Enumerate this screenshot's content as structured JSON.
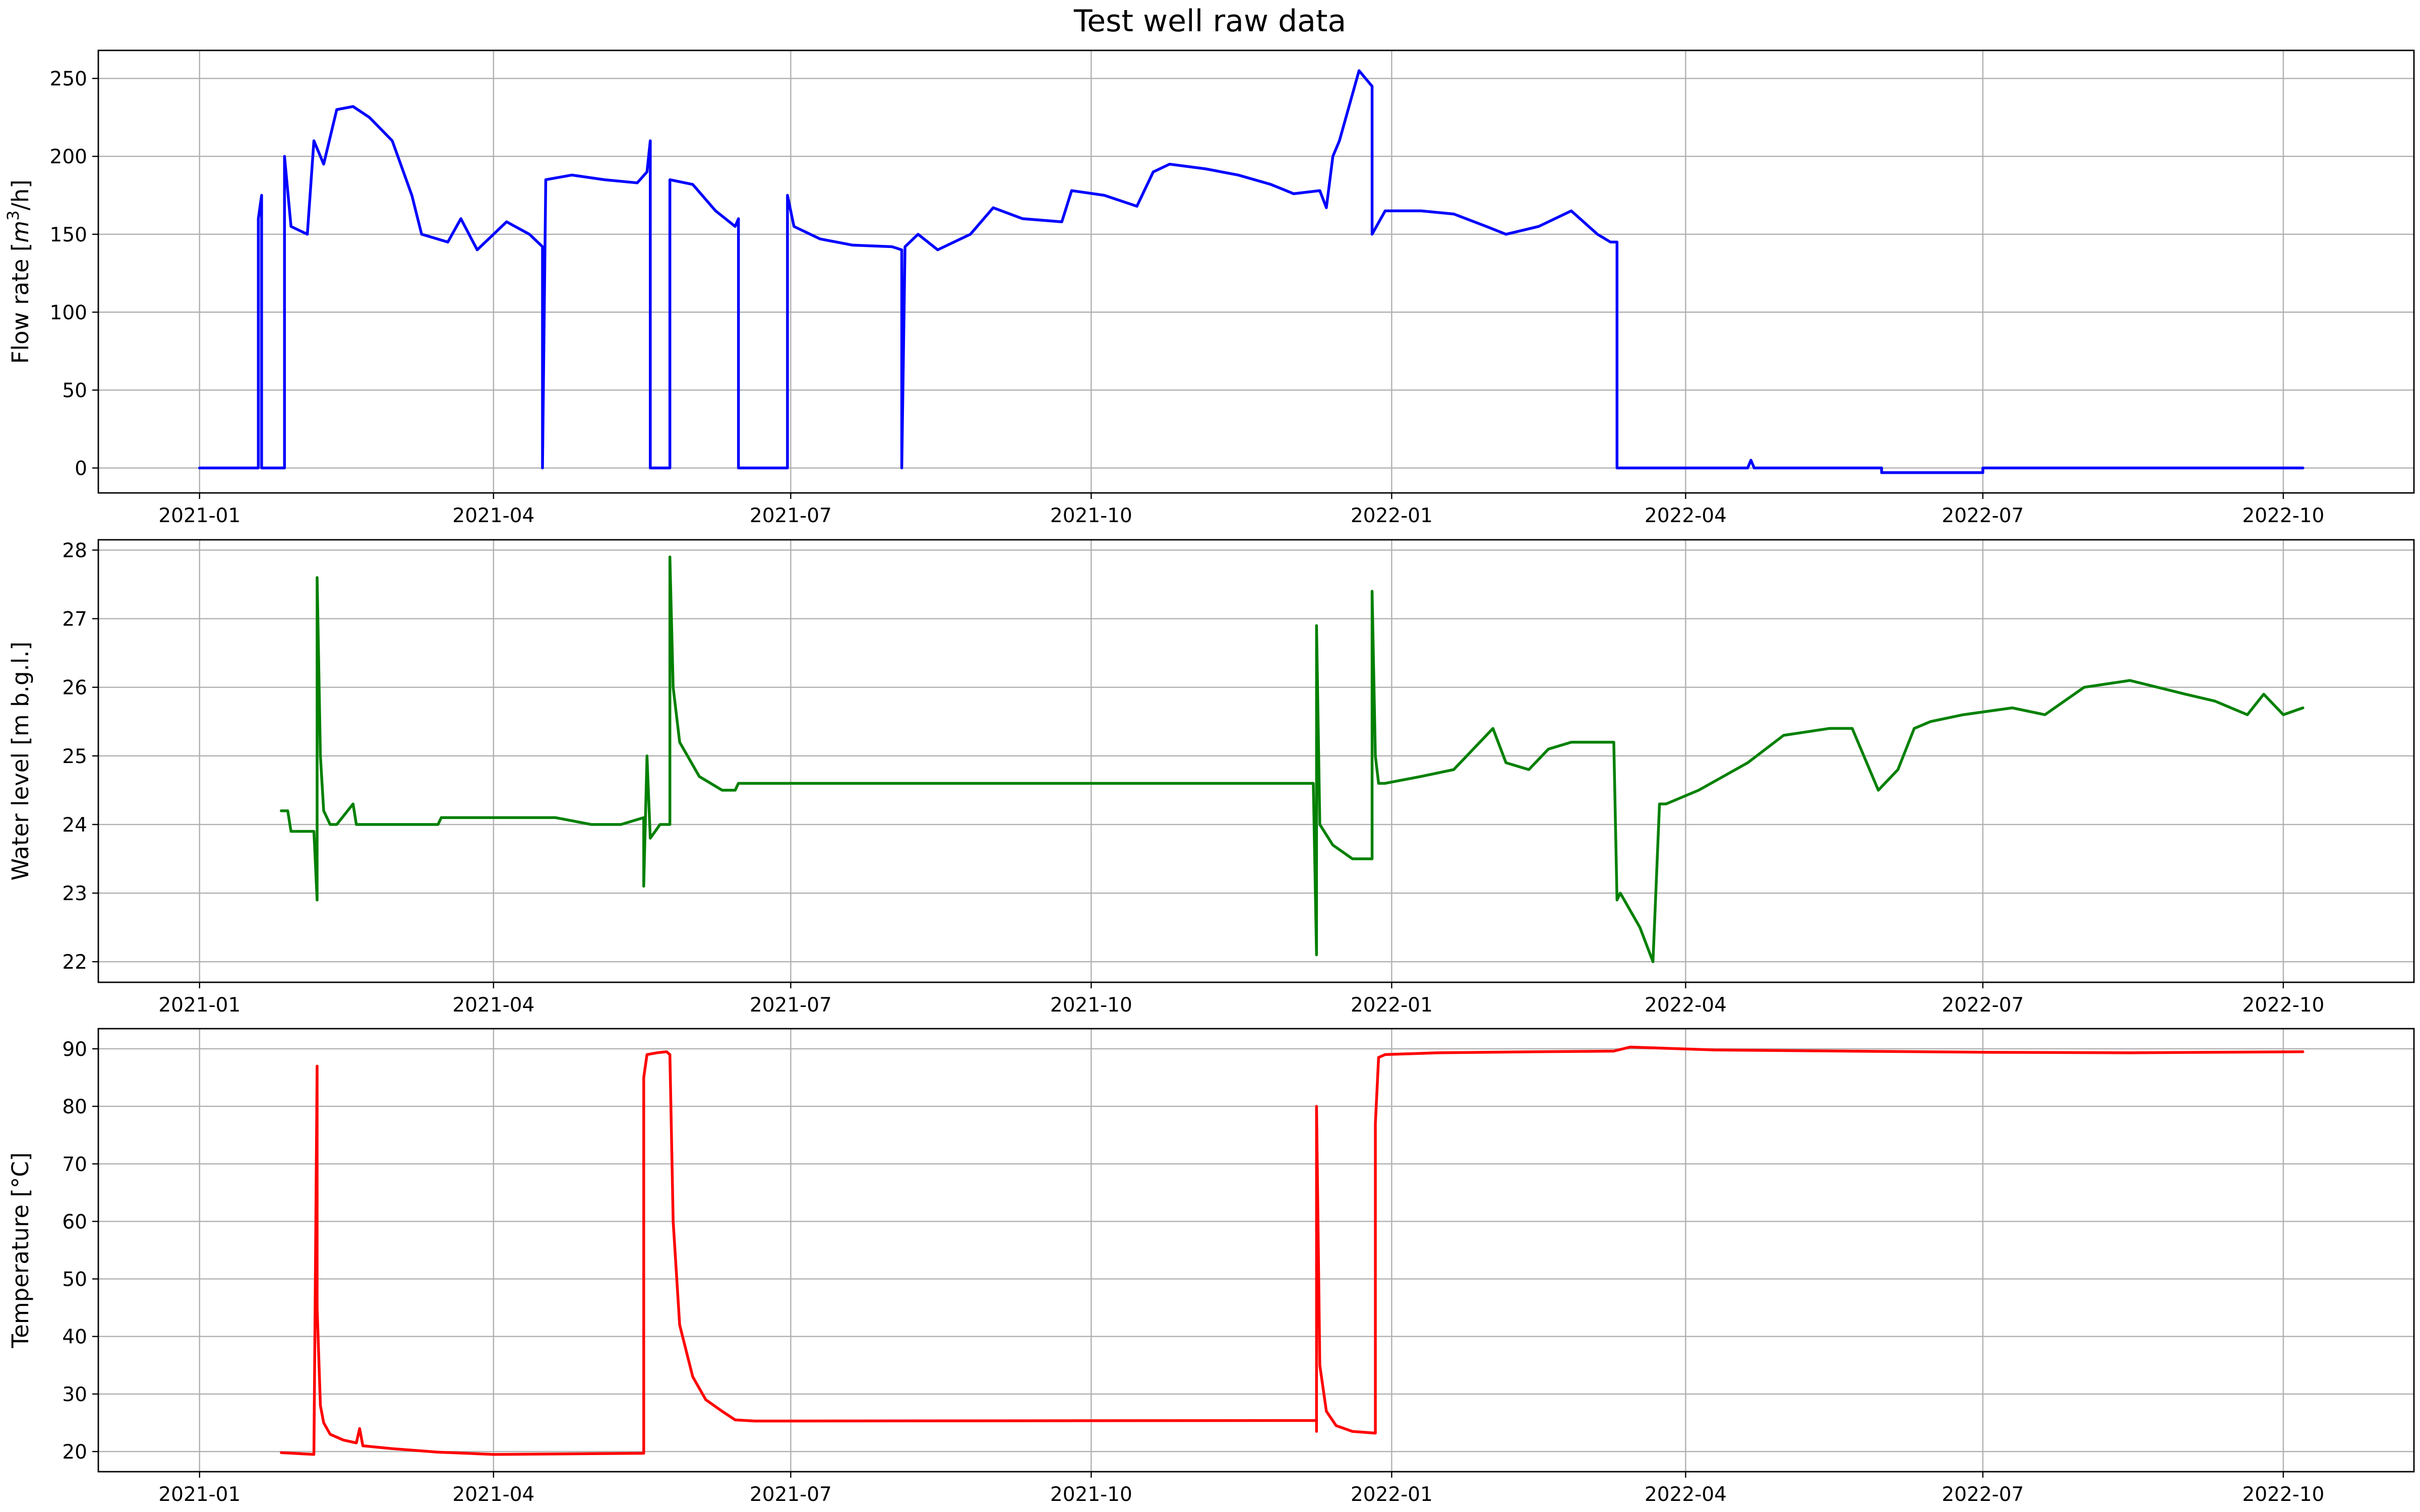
{
  "chart_data": {
    "suptitle": "Test well raw data",
    "x_type": "date",
    "xlim": [
      "2020-12-01",
      "2022-11-10"
    ],
    "x_ticks": [
      "2021-01-01",
      "2021-04-01",
      "2021-07-01",
      "2021-10-01",
      "2022-01-01",
      "2022-04-01",
      "2022-07-01",
      "2022-10-01"
    ],
    "x_tick_labels": [
      "2021-01",
      "2021-04",
      "2021-07",
      "2021-10",
      "2022-01",
      "2022-04",
      "2022-07",
      "2022-10"
    ],
    "grid": true,
    "panels": [
      {
        "type": "line",
        "ylabel_main": "Flow rate [",
        "ylabel_math": "m",
        "ylabel_sup": "3",
        "ylabel_tail": "/h]",
        "ylim": [
          -16,
          268
        ],
        "yticks": [
          0,
          50,
          100,
          150,
          200,
          250
        ],
        "color": "#0000ff",
        "x": [
          "2021-01-01",
          "2021-01-19",
          "2021-01-19",
          "2021-01-20",
          "2021-01-20",
          "2021-01-21",
          "2021-01-21",
          "2021-01-27",
          "2021-01-27",
          "2021-01-29",
          "2021-02-03",
          "2021-02-05",
          "2021-02-08",
          "2021-02-12",
          "2021-02-17",
          "2021-02-22",
          "2021-03-01",
          "2021-03-07",
          "2021-03-10",
          "2021-03-18",
          "2021-03-22",
          "2021-03-27",
          "2021-04-05",
          "2021-04-12",
          "2021-04-16",
          "2021-04-16",
          "2021-04-17",
          "2021-04-25",
          "2021-05-05",
          "2021-05-15",
          "2021-05-18",
          "2021-05-19",
          "2021-05-19",
          "2021-05-25",
          "2021-05-25",
          "2021-06-01",
          "2021-06-08",
          "2021-06-14",
          "2021-06-15",
          "2021-06-15",
          "2021-06-30",
          "2021-06-30",
          "2021-07-02",
          "2021-07-10",
          "2021-07-20",
          "2021-08-01",
          "2021-08-04",
          "2021-08-04",
          "2021-08-05",
          "2021-08-09",
          "2021-08-15",
          "2021-08-25",
          "2021-09-01",
          "2021-09-10",
          "2021-09-22",
          "2021-09-25",
          "2021-10-05",
          "2021-10-15",
          "2021-10-20",
          "2021-10-25",
          "2021-11-05",
          "2021-11-15",
          "2021-11-25",
          "2021-12-02",
          "2021-12-10",
          "2021-12-12",
          "2021-12-14",
          "2021-12-16",
          "2021-12-22",
          "2021-12-26",
          "2021-12-26",
          "2021-12-30",
          "2022-01-10",
          "2022-01-20",
          "2022-01-30",
          "2022-02-05",
          "2022-02-15",
          "2022-02-25",
          "2022-03-05",
          "2022-03-09",
          "2022-03-11",
          "2022-03-11",
          "2022-03-20",
          "2022-04-20",
          "2022-04-21",
          "2022-04-22",
          "2022-05-31",
          "2022-05-31",
          "2022-07-01",
          "2022-07-01",
          "2022-10-07"
        ],
        "y": [
          0,
          0,
          160,
          175,
          0,
          0,
          0,
          0,
          200,
          155,
          150,
          210,
          195,
          230,
          232,
          225,
          210,
          175,
          150,
          145,
          160,
          140,
          158,
          150,
          142,
          0,
          185,
          188,
          185,
          183,
          190,
          210,
          0,
          0,
          185,
          182,
          165,
          155,
          160,
          0,
          0,
          175,
          155,
          147,
          143,
          142,
          140,
          0,
          142,
          150,
          140,
          150,
          167,
          160,
          158,
          178,
          175,
          168,
          190,
          195,
          192,
          188,
          182,
          176,
          178,
          167,
          200,
          210,
          255,
          245,
          150,
          165,
          165,
          163,
          155,
          150,
          155,
          165,
          150,
          145,
          145,
          0,
          0,
          0,
          5,
          0,
          0,
          -3,
          -3,
          0,
          0
        ],
        "name": ""
      },
      {
        "type": "line",
        "ylabel": "Water level [m b.g.l.]",
        "ylim": [
          21.7,
          28.15
        ],
        "yticks": [
          22,
          23,
          24,
          25,
          26,
          27,
          28
        ],
        "color": "#008000",
        "x": [
          "2021-01-26",
          "2021-01-28",
          "2021-01-29",
          "2021-02-05",
          "2021-02-06",
          "2021-02-06",
          "2021-02-07",
          "2021-02-08",
          "2021-02-10",
          "2021-02-12",
          "2021-02-17",
          "2021-02-18",
          "2021-03-15",
          "2021-03-16",
          "2021-03-25",
          "2021-03-26",
          "2021-04-20",
          "2021-05-01",
          "2021-05-10",
          "2021-05-17",
          "2021-05-17",
          "2021-05-18",
          "2021-05-19",
          "2021-05-22",
          "2021-05-25",
          "2021-05-25",
          "2021-05-26",
          "2021-05-28",
          "2021-06-03",
          "2021-06-10",
          "2021-06-14",
          "2021-06-15",
          "2021-07-01",
          "2021-12-08",
          "2021-12-09",
          "2021-12-09",
          "2021-12-10",
          "2021-12-14",
          "2021-12-20",
          "2021-12-26",
          "2021-12-26",
          "2021-12-27",
          "2021-12-28",
          "2021-12-30",
          "2022-01-10",
          "2022-01-20",
          "2022-02-01",
          "2022-02-05",
          "2022-02-12",
          "2022-02-18",
          "2022-02-25",
          "2022-03-05",
          "2022-03-10",
          "2022-03-11",
          "2022-03-12",
          "2022-03-18",
          "2022-03-22",
          "2022-03-24",
          "2022-03-26",
          "2022-04-05",
          "2022-04-20",
          "2022-05-01",
          "2022-05-15",
          "2022-05-22",
          "2022-05-30",
          "2022-06-05",
          "2022-06-10",
          "2022-06-15",
          "2022-06-25",
          "2022-07-10",
          "2022-07-20",
          "2022-08-01",
          "2022-08-15",
          "2022-09-01",
          "2022-09-10",
          "2022-09-20",
          "2022-09-25",
          "2022-10-01",
          "2022-10-07"
        ],
        "y": [
          24.2,
          24.2,
          23.9,
          23.9,
          22.9,
          27.6,
          25.0,
          24.2,
          24.0,
          24.0,
          24.3,
          24.0,
          24.0,
          24.1,
          24.1,
          24.1,
          24.1,
          24.0,
          24.0,
          24.1,
          23.1,
          25.0,
          23.8,
          24.0,
          24.0,
          27.9,
          26.0,
          25.2,
          24.7,
          24.5,
          24.5,
          24.6,
          24.6,
          24.6,
          22.1,
          26.9,
          24.0,
          23.7,
          23.5,
          23.5,
          27.4,
          25.0,
          24.6,
          24.6,
          24.7,
          24.8,
          25.4,
          24.9,
          24.8,
          25.1,
          25.2,
          25.2,
          25.2,
          22.9,
          23.0,
          22.5,
          22.0,
          24.3,
          24.3,
          24.5,
          24.9,
          25.3,
          25.4,
          25.4,
          24.5,
          24.8,
          25.4,
          25.5,
          25.6,
          25.7,
          25.6,
          26.0,
          26.1,
          25.9,
          25.8,
          25.6,
          25.9,
          25.6,
          25.7
        ],
        "name": ""
      },
      {
        "type": "line",
        "ylabel": "Temperature [°C]",
        "ylim": [
          16.5,
          93.5
        ],
        "yticks": [
          20,
          30,
          40,
          50,
          60,
          70,
          80,
          90
        ],
        "color": "#ff0000",
        "x": [
          "2021-01-26",
          "2021-02-05",
          "2021-02-06",
          "2021-02-06",
          "2021-02-07",
          "2021-02-08",
          "2021-02-10",
          "2021-02-14",
          "2021-02-18",
          "2021-02-19",
          "2021-02-20",
          "2021-03-01",
          "2021-03-15",
          "2021-04-01",
          "2021-05-17",
          "2021-05-17",
          "2021-05-18",
          "2021-05-21",
          "2021-05-24",
          "2021-05-25",
          "2021-05-26",
          "2021-05-28",
          "2021-06-01",
          "2021-06-05",
          "2021-06-10",
          "2021-06-14",
          "2021-06-20",
          "2021-07-01",
          "2021-12-09",
          "2021-12-09",
          "2021-12-09",
          "2021-12-10",
          "2021-12-12",
          "2021-12-15",
          "2021-12-20",
          "2021-12-27",
          "2021-12-27",
          "2021-12-28",
          "2021-12-30",
          "2022-01-15",
          "2022-02-15",
          "2022-03-10",
          "2022-03-15",
          "2022-04-10",
          "2022-05-20",
          "2022-07-01",
          "2022-08-15",
          "2022-10-07"
        ],
        "y": [
          19.8,
          19.5,
          87.0,
          45.0,
          28.0,
          25.0,
          23.0,
          22.0,
          21.5,
          24.0,
          21.0,
          20.5,
          19.9,
          19.5,
          19.7,
          85.0,
          89.0,
          89.3,
          89.5,
          89.0,
          60.0,
          42.0,
          33.0,
          29.0,
          27.0,
          25.5,
          25.3,
          25.3,
          25.4,
          23.5,
          80.0,
          35.0,
          27.0,
          24.5,
          23.5,
          23.2,
          77.0,
          88.5,
          89.0,
          89.3,
          89.5,
          89.6,
          90.3,
          89.8,
          89.6,
          89.4,
          89.3,
          89.5
        ],
        "name": ""
      }
    ]
  }
}
